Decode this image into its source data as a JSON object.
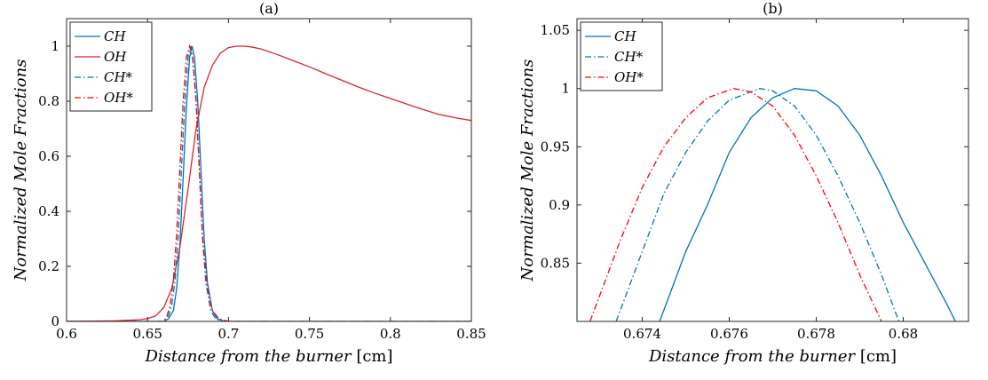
{
  "chart_data": [
    {
      "type": "line",
      "title": "(a)",
      "xlabel": "Distance from the burner",
      "xlabel_unit": "[cm]",
      "ylabel": "Normalized Mole Fractions",
      "xlim": [
        0.6,
        0.85
      ],
      "ylim": [
        0,
        1.1
      ],
      "x_ticks": [
        "0.6",
        "0.65",
        "0.7",
        "0.75",
        "0.8",
        "0.85"
      ],
      "y_ticks": [
        "0",
        "0.2",
        "0.4",
        "0.6",
        "0.8",
        "1"
      ],
      "grid": false,
      "legend_position": "top-left",
      "series": [
        {
          "name": "CH",
          "style": "solid",
          "color": "#0072BD",
          "x": [
            0.6,
            0.66,
            0.663,
            0.666,
            0.668,
            0.67,
            0.672,
            0.674,
            0.676,
            0.6775,
            0.679,
            0.681,
            0.683,
            0.685,
            0.687,
            0.69,
            0.693,
            0.696,
            0.7,
            0.85
          ],
          "y": [
            0,
            0,
            0.01,
            0.04,
            0.12,
            0.28,
            0.52,
            0.78,
            0.96,
            1.0,
            0.96,
            0.8,
            0.55,
            0.3,
            0.14,
            0.04,
            0.01,
            0.003,
            0,
            0
          ]
        },
        {
          "name": "OH",
          "style": "solid",
          "color": "#D62728",
          "x": [
            0.6,
            0.63,
            0.645,
            0.65,
            0.655,
            0.66,
            0.665,
            0.67,
            0.675,
            0.68,
            0.685,
            0.69,
            0.695,
            0.7,
            0.705,
            0.71,
            0.715,
            0.72,
            0.73,
            0.74,
            0.75,
            0.76,
            0.77,
            0.78,
            0.79,
            0.8,
            0.81,
            0.82,
            0.83,
            0.84,
            0.85
          ],
          "y": [
            0.0,
            0.002,
            0.006,
            0.01,
            0.02,
            0.05,
            0.12,
            0.27,
            0.48,
            0.7,
            0.85,
            0.93,
            0.975,
            0.995,
            1.0,
            1.0,
            0.996,
            0.99,
            0.97,
            0.947,
            0.925,
            0.9,
            0.876,
            0.852,
            0.83,
            0.81,
            0.79,
            0.77,
            0.752,
            0.74,
            0.73
          ]
        },
        {
          "name": "CH*",
          "style": "dashdot",
          "color": "#0072BD",
          "x": [
            0.6,
            0.66,
            0.663,
            0.665,
            0.667,
            0.669,
            0.671,
            0.673,
            0.675,
            0.6767,
            0.678,
            0.68,
            0.682,
            0.684,
            0.686,
            0.689,
            0.692,
            0.695,
            0.7,
            0.85
          ],
          "y": [
            0,
            0,
            0.02,
            0.06,
            0.15,
            0.32,
            0.56,
            0.8,
            0.96,
            1.0,
            0.95,
            0.8,
            0.55,
            0.3,
            0.14,
            0.04,
            0.01,
            0.002,
            0,
            0
          ]
        },
        {
          "name": "OH*",
          "style": "dashdot",
          "color": "#FF0000",
          "x": [
            0.6,
            0.66,
            0.662,
            0.664,
            0.666,
            0.668,
            0.67,
            0.672,
            0.674,
            0.676,
            0.678,
            0.68,
            0.682,
            0.684,
            0.687,
            0.69,
            0.694,
            0.7,
            0.85
          ],
          "y": [
            0,
            0,
            0.02,
            0.06,
            0.15,
            0.32,
            0.56,
            0.8,
            0.96,
            1.0,
            0.95,
            0.8,
            0.55,
            0.3,
            0.12,
            0.04,
            0.01,
            0,
            0
          ]
        }
      ]
    },
    {
      "type": "line",
      "title": "(b)",
      "xlabel": "Distance from the burner",
      "xlabel_unit": "[cm]",
      "ylabel": "Normalized Mole Fractions",
      "xlim": [
        0.6725,
        0.6815
      ],
      "ylim": [
        0.8,
        1.06
      ],
      "x_ticks": [
        "0.674",
        "0.676",
        "0.678",
        "0.68"
      ],
      "y_ticks": [
        "0.85",
        "0.9",
        "0.95",
        "1",
        "1.05"
      ],
      "grid": false,
      "legend_position": "top-left",
      "series": [
        {
          "name": "CH",
          "style": "solid",
          "color": "#0072BD",
          "x": [
            0.6744,
            0.675,
            0.6755,
            0.676,
            0.6765,
            0.677,
            0.6775,
            0.678,
            0.6785,
            0.679,
            0.6795,
            0.68,
            0.6805,
            0.681,
            0.6812
          ],
          "y": [
            0.8,
            0.86,
            0.9,
            0.945,
            0.975,
            0.992,
            1.0,
            0.998,
            0.985,
            0.96,
            0.925,
            0.885,
            0.85,
            0.815,
            0.8
          ]
        },
        {
          "name": "CH*",
          "style": "dashdot",
          "color": "#0072BD",
          "x": [
            0.6734,
            0.674,
            0.6745,
            0.675,
            0.6755,
            0.676,
            0.6767,
            0.677,
            0.6775,
            0.678,
            0.6785,
            0.679,
            0.6795,
            0.6799
          ],
          "y": [
            0.8,
            0.86,
            0.91,
            0.945,
            0.972,
            0.99,
            1.0,
            0.998,
            0.985,
            0.96,
            0.925,
            0.885,
            0.84,
            0.8
          ]
        },
        {
          "name": "OH*",
          "style": "dashdot",
          "color": "#FF0000",
          "x": [
            0.6728,
            0.6735,
            0.674,
            0.6745,
            0.675,
            0.6755,
            0.6761,
            0.6765,
            0.677,
            0.6775,
            0.678,
            0.6785,
            0.679,
            0.6795
          ],
          "y": [
            0.8,
            0.87,
            0.915,
            0.95,
            0.975,
            0.992,
            1.0,
            0.997,
            0.985,
            0.96,
            0.925,
            0.885,
            0.84,
            0.8
          ]
        }
      ]
    }
  ]
}
